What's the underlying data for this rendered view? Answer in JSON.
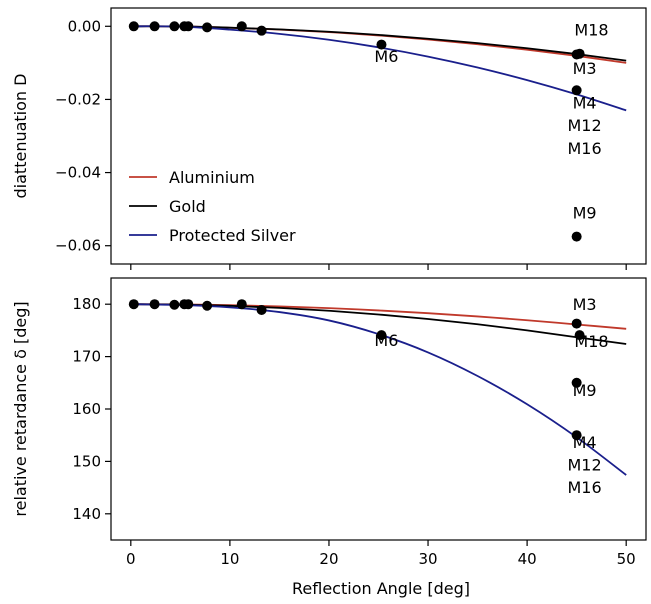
{
  "chart_data": [
    {
      "type": "line",
      "xlabel": "",
      "ylabel": "diattenuation D",
      "xlim": [
        -2,
        52
      ],
      "ylim": [
        -0.065,
        0.005
      ],
      "yticks": [
        0.0,
        -0.02,
        -0.04,
        -0.06
      ],
      "ytick_labels": [
        "0.00",
        "−0.02",
        "−0.04",
        "−0.06"
      ],
      "xticks": [
        0,
        10,
        20,
        30,
        40,
        50
      ],
      "series": [
        {
          "name": "Aluminium",
          "color": "#c0392b",
          "x": [
            0,
            5,
            10,
            15,
            20,
            25,
            30,
            35,
            40,
            45,
            50
          ],
          "y": [
            0,
            -4e-05,
            -0.0004,
            -0.0009,
            -0.0016,
            -0.0025,
            -0.0036,
            -0.0049,
            -0.0064,
            -0.0081,
            -0.01
          ]
        },
        {
          "name": "Gold",
          "color": "#000000",
          "x": [
            0,
            5,
            10,
            15,
            20,
            25,
            30,
            35,
            40,
            45,
            50
          ],
          "y": [
            0,
            -4e-05,
            -0.00038,
            -0.00085,
            -0.0015,
            -0.00235,
            -0.0034,
            -0.0046,
            -0.006,
            -0.0076,
            -0.0094
          ]
        },
        {
          "name": "Protected Silver",
          "color": "#1a1f8c",
          "x": [
            0,
            5,
            10,
            15,
            20,
            25,
            30,
            35,
            40,
            45,
            50
          ],
          "y": [
            0,
            -0.0001,
            -0.00092,
            -0.00207,
            -0.00368,
            -0.00575,
            -0.00828,
            -0.01127,
            -0.01472,
            -0.01863,
            -0.023
          ]
        }
      ],
      "points": [
        {
          "x": 0.3,
          "y": 0.0
        },
        {
          "x": 2.4,
          "y": 0.0
        },
        {
          "x": 4.4,
          "y": 0.0
        },
        {
          "x": 5.4,
          "y": 0.0
        },
        {
          "x": 5.8,
          "y": 0.0
        },
        {
          "x": 7.7,
          "y": -0.0003
        },
        {
          "x": 11.2,
          "y": 0.0
        },
        {
          "x": 13.2,
          "y": -0.0012
        },
        {
          "x": 25.3,
          "y": -0.005
        },
        {
          "x": 45.0,
          "y": -0.0077
        },
        {
          "x": 45.3,
          "y": -0.0075
        },
        {
          "x": 45.0,
          "y": -0.0175
        },
        {
          "x": 45.0,
          "y": -0.0575
        }
      ],
      "annotations": [
        {
          "text": "M6",
          "x": 25.8,
          "y": -0.0098
        },
        {
          "text": "M18",
          "x": 46.5,
          "y": -0.0025
        },
        {
          "text": "M3",
          "x": 45.8,
          "y": -0.0131
        },
        {
          "text": "M4",
          "x": 45.8,
          "y": -0.0225
        },
        {
          "text": "M12",
          "x": 45.8,
          "y": -0.0287
        },
        {
          "text": "M16",
          "x": 45.8,
          "y": -0.0349
        },
        {
          "text": "M9",
          "x": 45.8,
          "y": -0.0525
        }
      ],
      "legend": {
        "position": "lower-left",
        "entries": [
          "Aluminium",
          "Gold",
          "Protected Silver"
        ]
      }
    },
    {
      "type": "line",
      "xlabel": "Reflection Angle [deg]",
      "ylabel": "relative retardance δ [deg]",
      "xlim": [
        -2,
        52
      ],
      "ylim": [
        135,
        185
      ],
      "yticks": [
        180,
        170,
        160,
        150,
        140
      ],
      "ytick_labels": [
        "180",
        "170",
        "160",
        "150",
        "140"
      ],
      "xticks": [
        0,
        10,
        20,
        30,
        40,
        50
      ],
      "xtick_labels": [
        "0",
        "10",
        "20",
        "30",
        "40",
        "50"
      ],
      "series": [
        {
          "name": "Aluminium",
          "color": "#c0392b",
          "x": [
            0,
            5,
            10,
            15,
            20,
            25,
            30,
            35,
            40,
            45,
            50
          ],
          "y": [
            180,
            179.95,
            179.81,
            179.57,
            179.25,
            178.81,
            178.28,
            177.66,
            176.94,
            176.13,
            175.3
          ]
        },
        {
          "name": "Gold",
          "color": "#000000",
          "x": [
            0,
            5,
            10,
            15,
            20,
            25,
            30,
            35,
            40,
            45,
            50
          ],
          "y": [
            180,
            179.92,
            179.69,
            179.3,
            178.75,
            178.04,
            177.18,
            176.17,
            175.01,
            173.69,
            172.4
          ]
        },
        {
          "name": "Protected Silver",
          "color": "#1a1f8c",
          "x": [
            0,
            5,
            10,
            15,
            20,
            25,
            30,
            35,
            40,
            45,
            50
          ],
          "y": [
            180,
            179.85,
            179.4,
            178.5,
            176.9,
            174.3,
            170.8,
            166.3,
            160.9,
            154.6,
            147.4
          ]
        }
      ],
      "points": [
        {
          "x": 0.3,
          "y": 180.0
        },
        {
          "x": 2.4,
          "y": 180.0
        },
        {
          "x": 4.4,
          "y": 179.9
        },
        {
          "x": 5.4,
          "y": 180.0
        },
        {
          "x": 5.8,
          "y": 180.0
        },
        {
          "x": 7.7,
          "y": 179.7
        },
        {
          "x": 11.2,
          "y": 180.0
        },
        {
          "x": 13.2,
          "y": 178.9
        },
        {
          "x": 25.3,
          "y": 174.1
        },
        {
          "x": 45.0,
          "y": 176.3
        },
        {
          "x": 45.3,
          "y": 174.1
        },
        {
          "x": 45.0,
          "y": 165.0
        },
        {
          "x": 45.0,
          "y": 155.0
        }
      ],
      "annotations": [
        {
          "text": "M6",
          "x": 25.8,
          "y": 172.0
        },
        {
          "text": "M3",
          "x": 45.8,
          "y": 178.9
        },
        {
          "text": "M18",
          "x": 46.5,
          "y": 171.8
        },
        {
          "text": "M9",
          "x": 45.8,
          "y": 162.5
        },
        {
          "text": "M4",
          "x": 45.8,
          "y": 152.6
        },
        {
          "text": "M12",
          "x": 45.8,
          "y": 148.3
        },
        {
          "text": "M16",
          "x": 45.8,
          "y": 144.0
        }
      ]
    }
  ]
}
